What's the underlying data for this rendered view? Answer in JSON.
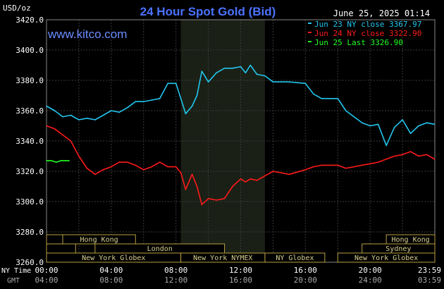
{
  "header": {
    "title": "24 Hour Spot Gold (Bid)",
    "timestamp": "June 25, 2025 01:14",
    "y_unit": "USD/oz",
    "watermark": "www.kitco.com"
  },
  "legend": [
    {
      "label": "Jun 23 NY close 3367.97",
      "color": "#22c6ee"
    },
    {
      "label": "Jun 24 NY close 3322.90",
      "color": "#ff1a1a"
    },
    {
      "label": "Jun 25 Last 3326.90",
      "color": "#22ff22"
    }
  ],
  "axis_labels": {
    "ny_time": "NY Time",
    "gmt": "GMT"
  },
  "sessions_row1_left": "Hong Kong",
  "sessions_row1_right": "Hong Kong",
  "sessions_row2_london": "London",
  "sessions_row2_sydney": "Sydney",
  "sessions_row3": [
    "New York Globex",
    "New York NYMEX",
    "NY Globex",
    "New York Globex"
  ],
  "chart_data": {
    "type": "line",
    "title": "24 Hour Spot Gold (Bid)",
    "ylabel": "USD/oz",
    "ylim": [
      3260,
      3420
    ],
    "yticks": [
      "3420.0",
      "3400.0",
      "3380.0",
      "3360.0",
      "3340.0",
      "3320.0",
      "3300.0",
      "3280.0",
      "3260.0"
    ],
    "ytick_values": [
      3420,
      3400,
      3380,
      3360,
      3340,
      3320,
      3300,
      3280,
      3260
    ],
    "xlim": [
      0,
      24
    ],
    "xticks_ny": [
      "00:00",
      "04:00",
      "08:00",
      "12:00",
      "16:00",
      "20:00",
      "23:59"
    ],
    "xticks_gmt": [
      "04:00",
      "08:00",
      "12:00",
      "16:00",
      "20:00",
      "24:00",
      "03:59"
    ],
    "xtick_hours": [
      0,
      4,
      8,
      12,
      16,
      20,
      23.98
    ],
    "nymex_shade_hours": [
      8.3,
      13.5
    ],
    "grid": true,
    "series": [
      {
        "name": "Jun 23 NY close 3367.97",
        "color": "#22c6ee",
        "x": [
          0,
          0.5,
          1,
          1.5,
          2,
          2.5,
          3,
          3.5,
          4,
          4.5,
          5,
          5.5,
          6,
          6.5,
          7,
          7.5,
          8,
          8.3,
          8.6,
          9,
          9.3,
          9.6,
          10,
          10.5,
          11,
          11.5,
          12,
          12.3,
          12.6,
          13,
          13.5,
          14,
          15,
          16,
          16.5,
          17,
          17.5,
          18,
          18.5,
          19,
          19.5,
          20,
          20.5,
          21,
          21.5,
          22,
          22.5,
          23,
          23.5,
          23.98
        ],
        "y": [
          3363,
          3360,
          3356,
          3357,
          3354,
          3355,
          3354,
          3357,
          3360,
          3359,
          3362,
          3366,
          3366,
          3367,
          3368,
          3378,
          3378,
          3368,
          3358,
          3363,
          3370,
          3386,
          3379,
          3385,
          3388,
          3388,
          3389,
          3385,
          3390,
          3384,
          3383,
          3379,
          3379,
          3378,
          3371,
          3368,
          3368,
          3368,
          3360,
          3356,
          3352,
          3350,
          3351,
          3337,
          3349,
          3354,
          3345,
          3350,
          3352,
          3351
        ]
      },
      {
        "name": "Jun 24 NY close 3322.90",
        "color": "#ff1a1a",
        "x": [
          0,
          0.5,
          1,
          1.5,
          2,
          2.5,
          3,
          3.5,
          4,
          4.5,
          5,
          5.5,
          6,
          6.5,
          7,
          7.5,
          8,
          8.3,
          8.6,
          9,
          9.3,
          9.6,
          10,
          10.5,
          11,
          11.5,
          12,
          12.3,
          12.6,
          13,
          13.5,
          14,
          15,
          16,
          16.5,
          17,
          17.5,
          18,
          18.5,
          19,
          19.5,
          20,
          20.5,
          21,
          21.5,
          22,
          22.5,
          23,
          23.5,
          23.98
        ],
        "y": [
          3350,
          3348,
          3344,
          3340,
          3330,
          3322,
          3318,
          3321,
          3323,
          3326,
          3326,
          3324,
          3321,
          3323,
          3326,
          3323,
          3323,
          3319,
          3308,
          3318,
          3310,
          3298,
          3302,
          3301,
          3302,
          3310,
          3315,
          3313,
          3315,
          3314,
          3317,
          3320,
          3318,
          3321,
          3323,
          3324,
          3324,
          3324,
          3322,
          3323,
          3324,
          3325,
          3326,
          3328,
          3330,
          3331,
          3333,
          3330,
          3331,
          3328
        ]
      },
      {
        "name": "Jun 25 Last 3326.90",
        "color": "#22ff22",
        "x": [
          0,
          0.3,
          0.6,
          0.9,
          1.2,
          1.4
        ],
        "y": [
          3327,
          3327,
          3326,
          3327,
          3327,
          3327
        ]
      }
    ]
  }
}
